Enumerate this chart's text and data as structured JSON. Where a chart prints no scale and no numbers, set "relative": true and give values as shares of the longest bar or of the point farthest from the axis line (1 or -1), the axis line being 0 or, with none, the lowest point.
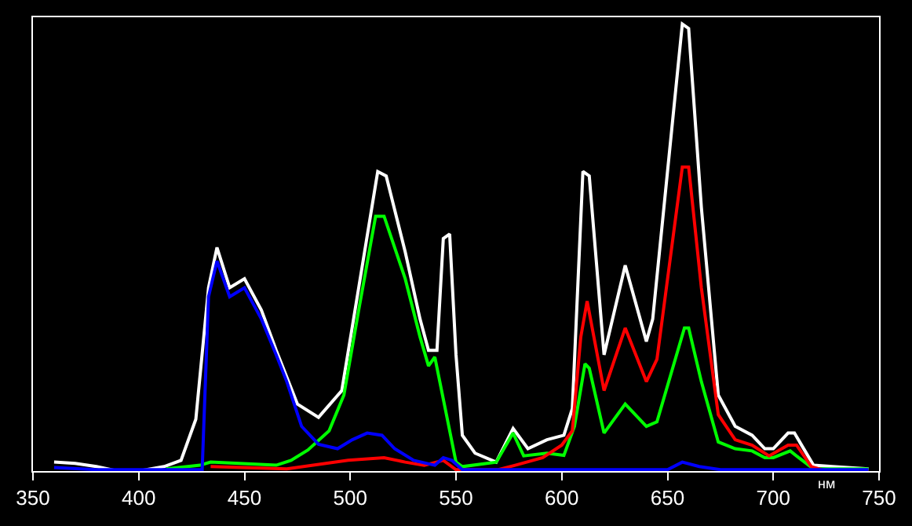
{
  "chart_data": {
    "type": "line",
    "relative": true,
    "xlabel": "нм",
    "xlim": [
      350,
      750
    ],
    "xticks": [
      350,
      400,
      450,
      500,
      550,
      600,
      650,
      700,
      750
    ],
    "marker": "none",
    "line_style": "solid",
    "series": [
      {
        "color": "#ffffff",
        "x": [
          360,
          370,
          380,
          390,
          400,
          412,
          420,
          427,
          433,
          437,
          443,
          450,
          458,
          465,
          475,
          485,
          496,
          504,
          513,
          517,
          526,
          533,
          537,
          541,
          544,
          547,
          550,
          553,
          559,
          569,
          577,
          584,
          593,
          601,
          605,
          610,
          613,
          620,
          630,
          640,
          643,
          657,
          660,
          666,
          674,
          682,
          690,
          696,
          700,
          707,
          710,
          719,
          728,
          745
        ],
        "values": [
          0.02,
          0.017,
          0.01,
          0.0,
          0.0,
          0.01,
          0.024,
          0.116,
          0.41,
          0.5,
          0.41,
          0.43,
          0.36,
          0.27,
          0.15,
          0.12,
          0.18,
          0.41,
          0.67,
          0.66,
          0.49,
          0.34,
          0.27,
          0.27,
          0.52,
          0.53,
          0.26,
          0.08,
          0.04,
          0.02,
          0.095,
          0.05,
          0.07,
          0.08,
          0.14,
          0.67,
          0.66,
          0.26,
          0.46,
          0.29,
          0.34,
          1.0,
          0.99,
          0.59,
          0.17,
          0.1,
          0.08,
          0.05,
          0.05,
          0.085,
          0.085,
          0.013,
          0.01,
          0.005
        ]
      },
      {
        "color": "#00ff00",
        "x": [
          413,
          429,
          434,
          465,
          472,
          480,
          490,
          497,
          504,
          512,
          516,
          526,
          533,
          537,
          540,
          550,
          553,
          569,
          577,
          582,
          593,
          601,
          606,
          611,
          613,
          620,
          630,
          640,
          645,
          658,
          660,
          666,
          674,
          682,
          690,
          696,
          700,
          708,
          712,
          719,
          745
        ],
        "values": [
          0.005,
          0.013,
          0.02,
          0.013,
          0.024,
          0.047,
          0.09,
          0.17,
          0.36,
          0.57,
          0.57,
          0.43,
          0.3,
          0.235,
          0.255,
          0.02,
          0.01,
          0.02,
          0.085,
          0.034,
          0.04,
          0.035,
          0.1,
          0.24,
          0.23,
          0.085,
          0.15,
          0.1,
          0.11,
          0.32,
          0.32,
          0.2,
          0.065,
          0.05,
          0.045,
          0.03,
          0.03,
          0.045,
          0.03,
          0.005,
          0.005
        ]
      },
      {
        "color": "#ff0000",
        "x": [
          434,
          470,
          499,
          516,
          526,
          535,
          544,
          550,
          570,
          578,
          591,
          600,
          605,
          609,
          612,
          620,
          630,
          640,
          645,
          657,
          660,
          666,
          674,
          682,
          690,
          698,
          707,
          711,
          718,
          725,
          745
        ],
        "values": [
          0.01,
          0.005,
          0.024,
          0.03,
          0.02,
          0.013,
          0.024,
          0.003,
          0.003,
          0.013,
          0.03,
          0.058,
          0.09,
          0.3,
          0.38,
          0.18,
          0.32,
          0.2,
          0.25,
          0.68,
          0.68,
          0.41,
          0.126,
          0.07,
          0.058,
          0.034,
          0.058,
          0.058,
          0.01,
          0.0,
          0.0
        ]
      },
      {
        "color": "#0000ff",
        "x": [
          360,
          380,
          430,
          433,
          437,
          443,
          450,
          458,
          465,
          470,
          477,
          485,
          494,
          501,
          508,
          515,
          521,
          530,
          540,
          544,
          548,
          553,
          650,
          657,
          665,
          675,
          745
        ],
        "values": [
          0.008,
          0.003,
          0.003,
          0.39,
          0.47,
          0.39,
          0.41,
          0.34,
          0.26,
          0.2,
          0.1,
          0.06,
          0.05,
          0.07,
          0.085,
          0.08,
          0.05,
          0.024,
          0.013,
          0.03,
          0.024,
          0.003,
          0.003,
          0.02,
          0.01,
          0.003,
          0.003
        ]
      }
    ]
  }
}
